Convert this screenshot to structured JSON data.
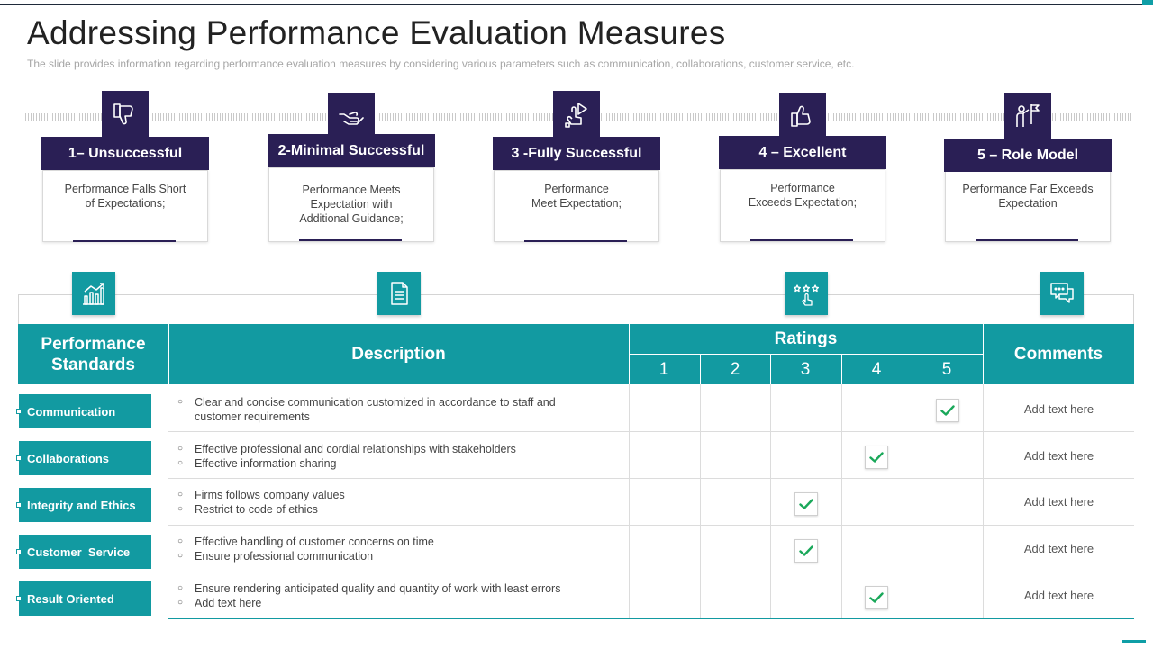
{
  "title": "Addressing Performance Evaluation Measures",
  "subtitle": "The slide provides  information  regarding  performance  evaluation  measures  by considering  various  parameters  such as communication,  collaborations,  customer service,  etc.",
  "levels": [
    {
      "label": "1– Unsuccessful",
      "lines": [
        "Performance  Falls Short",
        "of Expectations;"
      ],
      "icon": "thumbs-down-icon"
    },
    {
      "label": "2-Minimal Successful",
      "lines": [
        "Performance  Meets",
        "Expectation with",
        "Additional Guidance;"
      ],
      "icon": "helping-hand-icon"
    },
    {
      "label": "3 -Fully Successful",
      "lines": [
        "Performance",
        "Meet Expectation;"
      ],
      "icon": "hand-pointer-icon"
    },
    {
      "label": "4 – Excellent",
      "lines": [
        "Performance",
        "Exceeds Expectation;"
      ],
      "icon": "thumbs-up-icon"
    },
    {
      "label": "5 – Role Model",
      "lines": [
        "Performance  Far Exceeds",
        "Expectation"
      ],
      "icon": "person-flag-icon"
    }
  ],
  "table": {
    "headers": {
      "standards": [
        "Performance",
        "Standards"
      ],
      "description": "Description",
      "ratings": "Ratings",
      "comments": "Comments"
    },
    "rating_scale": [
      "1",
      "2",
      "3",
      "4",
      "5"
    ],
    "header_icons": [
      "growth-chart-icon",
      "document-icon",
      "star-rating-icon",
      "chat-icon"
    ],
    "rows": [
      {
        "standard": "Communication",
        "description": [
          "Clear and concise communication customized in accordance to staff and",
          "customer requirements"
        ],
        "rating": 5,
        "comment": "Add text here"
      },
      {
        "standard": "Collaborations",
        "description": [
          "Effective professional  and cordial relationships with stakeholders",
          "Effective information  sharing"
        ],
        "rating": 4,
        "comment": "Add text here"
      },
      {
        "standard": "Integrity and Ethics",
        "description": [
          "Firms follows company values",
          "Restrict to code of ethics"
        ],
        "rating": 3,
        "comment": "Add text here"
      },
      {
        "standard": "Customer  Service",
        "description": [
          "Effective handling of customer concerns on time",
          "Ensure professional communication"
        ],
        "rating": 3,
        "comment": "Add text here"
      },
      {
        "standard": "Result Oriented",
        "description": [
          "Ensure rendering anticipated quality and quantity of work with least errors",
          "Add text here"
        ],
        "rating": 4,
        "comment": "Add text here"
      }
    ]
  },
  "colors": {
    "navy": "#2a1f55",
    "teal": "#129aa1",
    "check_green": "#1aa85a"
  }
}
